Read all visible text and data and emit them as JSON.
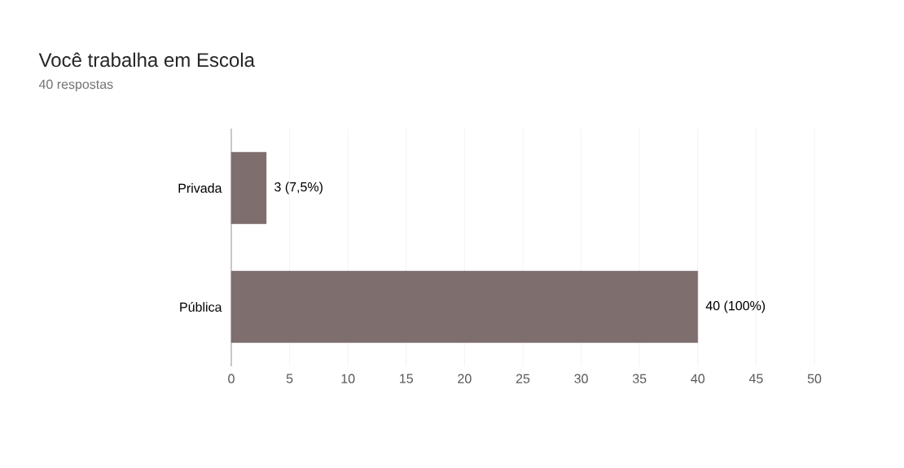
{
  "chart_data": {
    "type": "bar",
    "orientation": "horizontal",
    "title": "Você trabalha em Escola",
    "subtitle": "40 respostas",
    "categories": [
      "Privada",
      "Pública"
    ],
    "values": [
      3,
      40
    ],
    "color": "#7f6e6e",
    "value_labels": [
      "3 (7,5%)",
      "40 (100%)"
    ],
    "xlim": [
      0,
      50
    ],
    "xticks": [
      0,
      5,
      10,
      15,
      20,
      25,
      30,
      35,
      40,
      45,
      50
    ],
    "grid": "x"
  }
}
